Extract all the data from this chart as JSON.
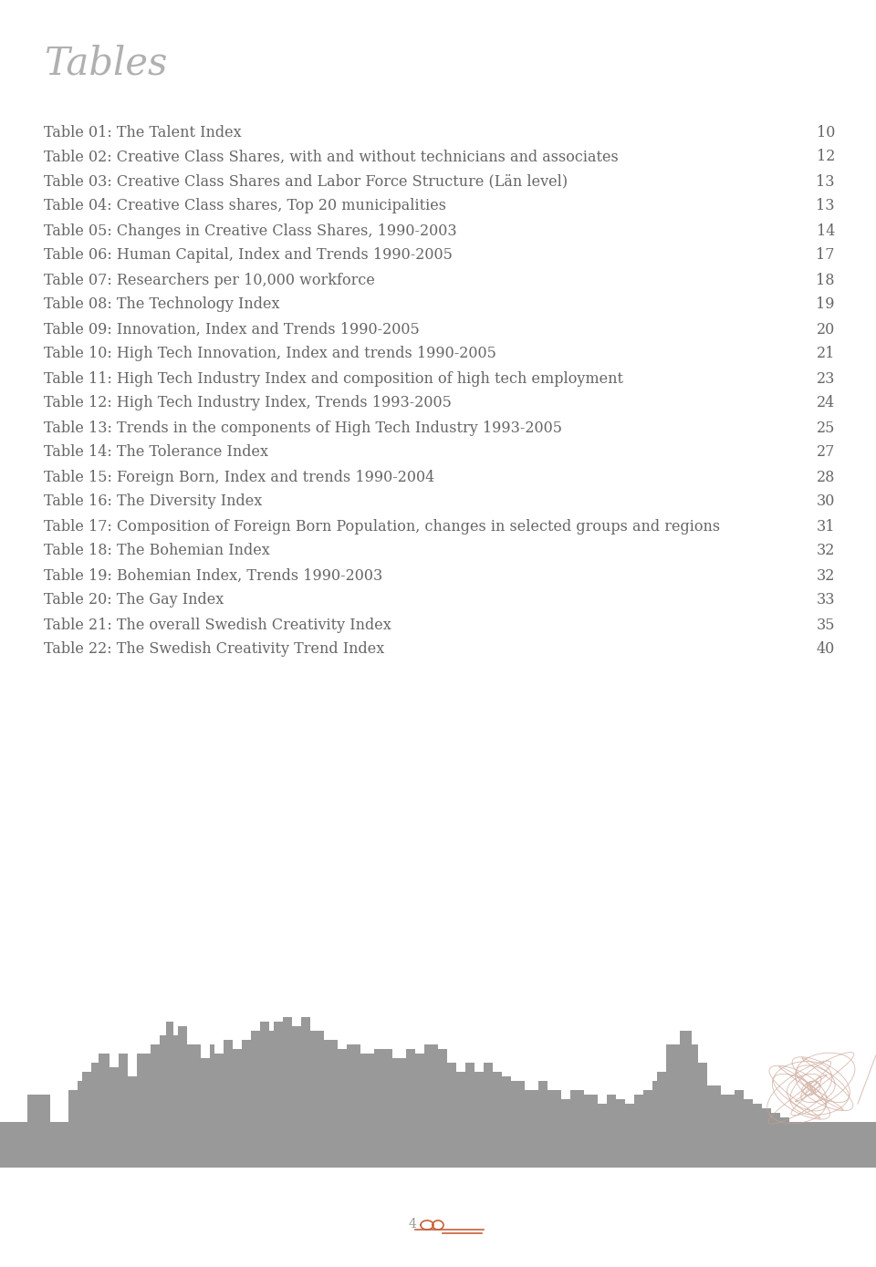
{
  "title": "Tables",
  "title_color": "#b0b0b0",
  "title_fontsize": 30,
  "entries": [
    {
      "label": "Table 01: The Talent Index",
      "page": "10"
    },
    {
      "label": "Table 02: Creative Class Shares, with and without technicians and associates",
      "page": "12"
    },
    {
      "label": "Table 03: Creative Class Shares and Labor Force Structure (Län level)",
      "page": "13"
    },
    {
      "label": "Table 04: Creative Class shares, Top 20 municipalities",
      "page": "13"
    },
    {
      "label": "Table 05: Changes in Creative Class Shares, 1990-2003",
      "page": "14"
    },
    {
      "label": "Table 06: Human Capital, Index and Trends 1990-2005",
      "page": "17"
    },
    {
      "label": "Table 07: Researchers per 10,000 workforce",
      "page": "18"
    },
    {
      "label": "Table 08: The Technology Index",
      "page": "19"
    },
    {
      "label": "Table 09: Innovation, Index and Trends 1990-2005",
      "page": "20"
    },
    {
      "label": "Table 10: High Tech Innovation, Index and trends 1990-2005",
      "page": "21"
    },
    {
      "label": "Table 11: High Tech Industry Index and composition of high tech employment",
      "page": "23"
    },
    {
      "label": "Table 12: High Tech Industry Index, Trends 1993-2005",
      "page": "24"
    },
    {
      "label": "Table 13: Trends in the components of High Tech Industry 1993-2005",
      "page": "25"
    },
    {
      "label": "Table 14: The Tolerance Index",
      "page": "27"
    },
    {
      "label": "Table 15: Foreign Born, Index and trends 1990-2004",
      "page": "28"
    },
    {
      "label": "Table 16: The Diversity Index",
      "page": "30"
    },
    {
      "label": "Table 17: Composition of Foreign Born Population, changes in selected groups and regions",
      "page": "31"
    },
    {
      "label": "Table 18: The Bohemian Index",
      "page": "32"
    },
    {
      "label": "Table 19: Bohemian Index, Trends 1990-2003",
      "page": "32"
    },
    {
      "label": "Table 20: The Gay Index",
      "page": "33"
    },
    {
      "label": "Table 21: The overall Swedish Creativity Index",
      "page": "35"
    },
    {
      "label": "Table 22: The Swedish Creativity Trend Index",
      "page": "40"
    }
  ],
  "text_color": "#666666",
  "text_fontsize": 11.5,
  "page_color": "#666666",
  "bg_color": "#ffffff",
  "skyline_color": "#999999",
  "squiggle_color": "#c8a090",
  "squiggle_accent": "#c8603a",
  "footer_page": "4",
  "footer_color": "#c8603a",
  "footer_gray": "#999999"
}
